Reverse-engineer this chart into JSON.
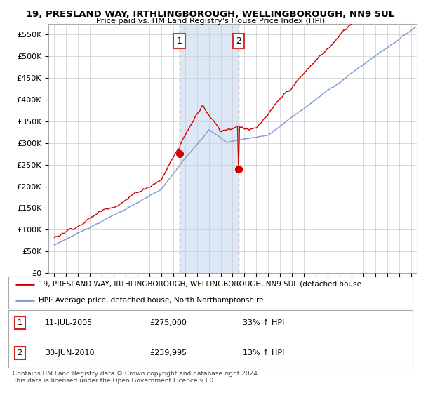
{
  "title": "19, PRESLAND WAY, IRTHLINGBOROUGH, WELLINGBOROUGH, NN9 5UL",
  "subtitle": "Price paid vs. HM Land Registry's House Price Index (HPI)",
  "ylabel_ticks": [
    "£0",
    "£50K",
    "£100K",
    "£150K",
    "£200K",
    "£250K",
    "£300K",
    "£350K",
    "£400K",
    "£450K",
    "£500K",
    "£550K"
  ],
  "ytick_values": [
    0,
    50000,
    100000,
    150000,
    200000,
    250000,
    300000,
    350000,
    400000,
    450000,
    500000,
    550000
  ],
  "ylim": [
    0,
    575000
  ],
  "xlim_start": 1994.5,
  "xlim_end": 2025.5,
  "red_line_color": "#cc0000",
  "blue_line_color": "#7799cc",
  "blue_fill_color": "#dce8f5",
  "vline_color": "#cc3333",
  "marker1_x": 2005.53,
  "marker1_y": 275000,
  "marker2_x": 2010.5,
  "marker2_y": 239995,
  "vline1_x": 2005.53,
  "vline2_x": 2010.5,
  "legend_line1": "19, PRESLAND WAY, IRTHLINGBOROUGH, WELLINGBOROUGH, NN9 5UL (detached house",
  "legend_line2": "HPI: Average price, detached house, North Northamptonshire",
  "table_row1": [
    "1",
    "11-JUL-2005",
    "£275,000",
    "33% ↑ HPI"
  ],
  "table_row2": [
    "2",
    "30-JUN-2010",
    "£239,995",
    "13% ↑ HPI"
  ],
  "footer": "Contains HM Land Registry data © Crown copyright and database right 2024.\nThis data is licensed under the Open Government Licence v3.0.",
  "background_color": "#ffffff",
  "plot_bg_color": "#ffffff",
  "grid_color": "#cccccc"
}
